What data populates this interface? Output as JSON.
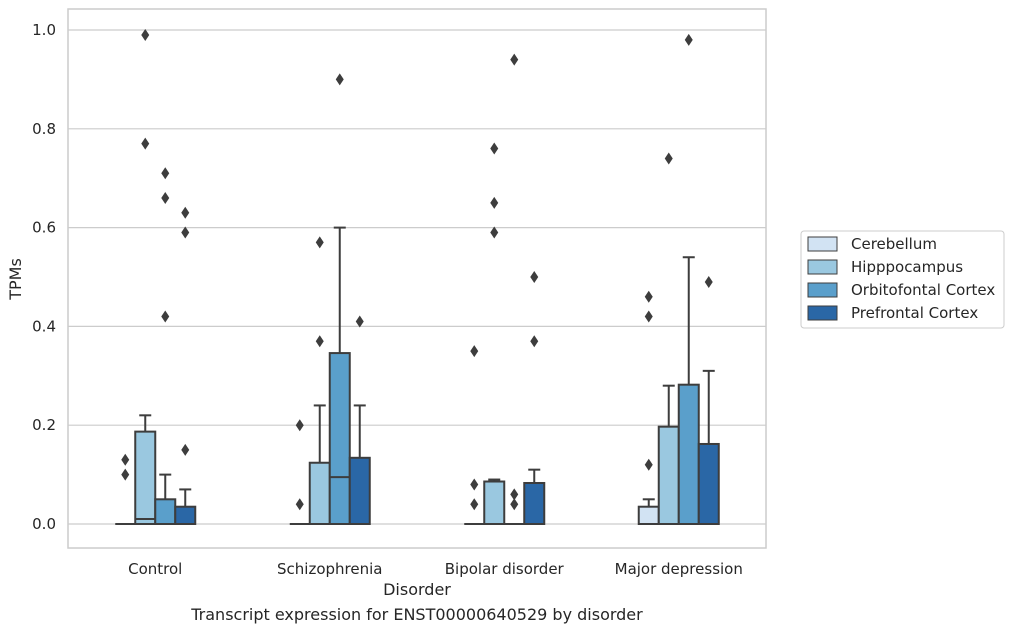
{
  "caption": "Transcript expression for ENST00000640529 by disorder",
  "chart_data": {
    "type": "box",
    "xlabel": "Disorder",
    "ylabel": "TPMs",
    "categories": [
      "Control",
      "Schizophrenia",
      "Bipolar disorder",
      "Major depression"
    ],
    "ylim": [
      -0.05,
      1.04
    ],
    "yticks": [
      "0.0",
      "0.2",
      "0.4",
      "0.6",
      "0.8",
      "1.0"
    ],
    "grid": "horizontal",
    "legend_position": "right",
    "series": [
      {
        "name": "Cerebellum",
        "color": "#d2e3f3",
        "boxes": [
          {
            "whislo": 0,
            "q1": 0,
            "median": 0,
            "q3": 0,
            "whishi": 0,
            "fliers": [
              0.13,
              0.1
            ]
          },
          {
            "whislo": 0,
            "q1": 0,
            "median": 0,
            "q3": 0,
            "whishi": 0,
            "fliers": [
              0.2,
              0.04
            ]
          },
          {
            "whislo": 0,
            "q1": 0,
            "median": 0,
            "q3": 0,
            "whishi": 0,
            "fliers": [
              0.35,
              0.08,
              0.04
            ]
          },
          {
            "whislo": 0,
            "q1": 0,
            "median": 0,
            "q3": 0.035,
            "whishi": 0.05,
            "fliers": [
              0.46,
              0.42,
              0.12
            ]
          }
        ]
      },
      {
        "name": "Hipppocampus",
        "color": "#9ac8e0",
        "boxes": [
          {
            "whislo": 0,
            "q1": 0,
            "median": 0.01,
            "q3": 0.187,
            "whishi": 0.22,
            "fliers": [
              0.99,
              0.77
            ]
          },
          {
            "whislo": 0,
            "q1": 0,
            "median": 0,
            "q3": 0.124,
            "whishi": 0.24,
            "fliers": [
              0.57,
              0.37
            ]
          },
          {
            "whislo": 0,
            "q1": 0,
            "median": 0,
            "q3": 0.086,
            "whishi": 0.09,
            "fliers": [
              0.76,
              0.65,
              0.59
            ]
          },
          {
            "whislo": 0,
            "q1": 0,
            "median": 0,
            "q3": 0.197,
            "whishi": 0.28,
            "fliers": [
              0.74
            ]
          }
        ]
      },
      {
        "name": "Orbitofontal Cortex",
        "color": "#5a9fcb",
        "boxes": [
          {
            "whislo": 0,
            "q1": 0,
            "median": 0,
            "q3": 0.05,
            "whishi": 0.1,
            "fliers": [
              0.71,
              0.66,
              0.42
            ]
          },
          {
            "whislo": 0,
            "q1": 0,
            "median": 0.095,
            "q3": 0.346,
            "whishi": 0.6,
            "fliers": [
              0.9
            ]
          },
          {
            "whislo": 0,
            "q1": 0,
            "median": 0,
            "q3": 0,
            "whishi": 0,
            "fliers": [
              0.94,
              0.06,
              0.04
            ]
          },
          {
            "whislo": 0,
            "q1": 0,
            "median": 0,
            "q3": 0.282,
            "whishi": 0.54,
            "fliers": [
              0.98
            ]
          }
        ]
      },
      {
        "name": "Prefrontal Cortex",
        "color": "#2a67a6",
        "boxes": [
          {
            "whislo": 0,
            "q1": 0,
            "median": 0,
            "q3": 0.035,
            "whishi": 0.07,
            "fliers": [
              0.63,
              0.59,
              0.15
            ]
          },
          {
            "whislo": 0,
            "q1": 0,
            "median": 0,
            "q3": 0.134,
            "whishi": 0.24,
            "fliers": [
              0.41
            ]
          },
          {
            "whislo": 0,
            "q1": 0,
            "median": 0,
            "q3": 0.083,
            "whishi": 0.11,
            "fliers": [
              0.5,
              0.37
            ]
          },
          {
            "whislo": 0,
            "q1": 0,
            "median": 0,
            "q3": 0.162,
            "whishi": 0.31,
            "fliers": [
              0.49
            ]
          }
        ]
      }
    ]
  }
}
